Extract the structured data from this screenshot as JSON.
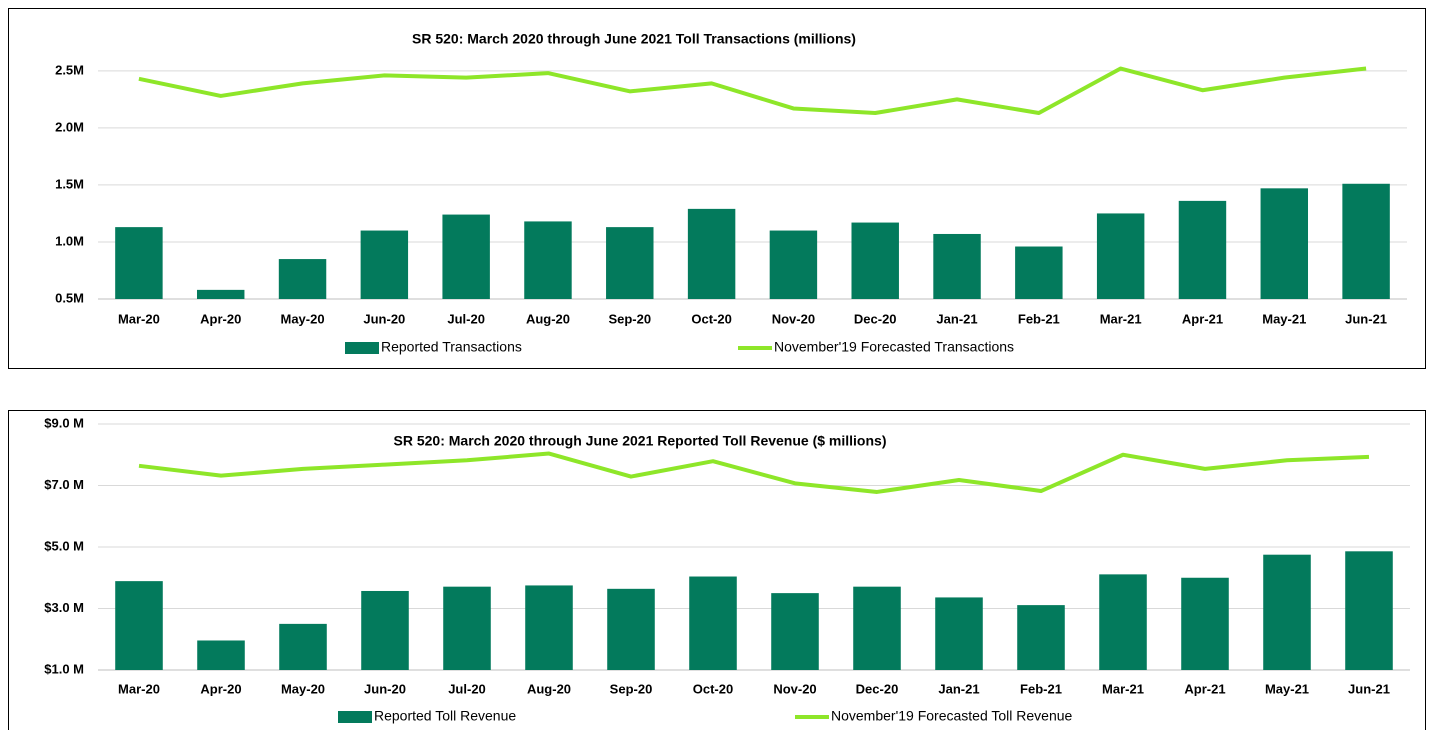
{
  "chart_data": [
    {
      "type": "bar",
      "title": "SR 520: March 2020 through June 2021 Toll Transactions (millions)",
      "categories": [
        "Mar-20",
        "Apr-20",
        "May-20",
        "Jun-20",
        "Jul-20",
        "Aug-20",
        "Sep-20",
        "Oct-20",
        "Nov-20",
        "Dec-20",
        "Jan-21",
        "Feb-21",
        "Mar-21",
        "Apr-21",
        "May-21",
        "Jun-21"
      ],
      "series": [
        {
          "name": "Reported Transactions",
          "type": "bar",
          "color": "#037a5c",
          "values": [
            1.13,
            0.58,
            0.85,
            1.1,
            1.24,
            1.18,
            1.13,
            1.29,
            1.1,
            1.17,
            1.07,
            0.96,
            1.25,
            1.36,
            1.47,
            1.51
          ]
        },
        {
          "name": "November'19  Forecasted Transactions",
          "type": "line",
          "color": "#8ee629",
          "values": [
            2.43,
            2.28,
            2.39,
            2.46,
            2.44,
            2.48,
            2.32,
            2.39,
            2.17,
            2.13,
            2.25,
            2.13,
            2.52,
            2.33,
            2.44,
            2.52
          ]
        }
      ],
      "ylim": [
        0.5,
        2.7
      ],
      "yticks": [
        {
          "value": 0.5,
          "label": "0.5M"
        },
        {
          "value": 1.0,
          "label": "1.0M"
        },
        {
          "value": 1.5,
          "label": "1.5M"
        },
        {
          "value": 2.0,
          "label": "2.0M"
        },
        {
          "value": 2.5,
          "label": "2.5M"
        }
      ],
      "grid": true,
      "legend": "bottom"
    },
    {
      "type": "bar",
      "title": "SR 520: March 2020 through June 2021 Reported Toll Revenue  ($ millions)",
      "categories": [
        "Mar-20",
        "Apr-20",
        "May-20",
        "Jun-20",
        "Jul-20",
        "Aug-20",
        "Sep-20",
        "Oct-20",
        "Nov-20",
        "Dec-20",
        "Jan-21",
        "Feb-21",
        "Mar-21",
        "Apr-21",
        "May-21",
        "Jun-21"
      ],
      "series": [
        {
          "name": "Reported Toll Revenue",
          "type": "bar",
          "color": "#037a5c",
          "values": [
            3.89,
            1.96,
            2.5,
            3.57,
            3.71,
            3.75,
            3.64,
            4.04,
            3.5,
            3.71,
            3.36,
            3.11,
            4.11,
            4.0,
            4.75,
            4.86
          ]
        },
        {
          "name": "November'19  Forecasted Toll Revenue",
          "type": "line",
          "color": "#8ee629",
          "values": [
            7.64,
            7.32,
            7.54,
            7.68,
            7.82,
            8.04,
            7.29,
            7.79,
            7.07,
            6.79,
            7.18,
            6.82,
            8.0,
            7.54,
            7.82,
            7.93
          ]
        }
      ],
      "ylim": [
        1,
        9
      ],
      "yticks": [
        {
          "value": 1,
          "label": "$1.0 M"
        },
        {
          "value": 3,
          "label": "$3.0 M"
        },
        {
          "value": 5,
          "label": "$5.0 M"
        },
        {
          "value": 7,
          "label": "$7.0 M"
        },
        {
          "value": 9,
          "label": "$9.0 M"
        }
      ],
      "grid": true,
      "legend": "bottom"
    }
  ]
}
